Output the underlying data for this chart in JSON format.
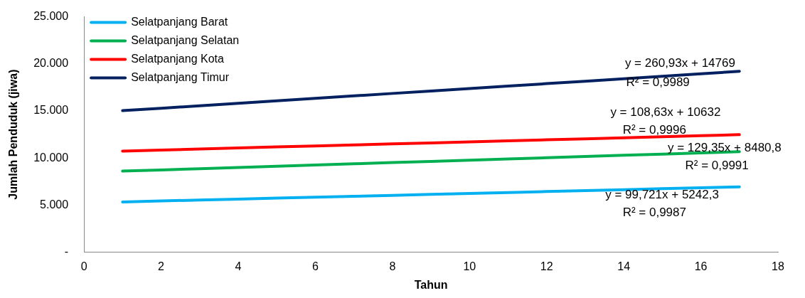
{
  "chart_data": {
    "type": "line",
    "xlabel": "Tahun",
    "ylabel": "Jumlah Penduduk (jiwa)",
    "x": [
      1,
      2,
      3,
      4,
      5,
      6,
      7,
      8,
      9,
      10,
      11,
      12,
      13,
      14,
      15,
      16,
      17
    ],
    "series": [
      {
        "name": "Selatpanjang Barat",
        "color": "#00b0f0",
        "values": [
          5340,
          5440,
          5540,
          5640,
          5740,
          5840,
          5940,
          6040,
          6140,
          6240,
          6340,
          6440,
          6540,
          6640,
          6740,
          6840,
          6940
        ]
      },
      {
        "name": "Selatpanjang Selatan",
        "color": "#00b050",
        "values": [
          8610,
          8740,
          8870,
          9000,
          9130,
          9260,
          9390,
          9520,
          9640,
          9770,
          9900,
          10030,
          10160,
          10290,
          10420,
          10550,
          10680
        ]
      },
      {
        "name": "Selatpanjang Kota",
        "color": "#ff0000",
        "values": [
          10740,
          10850,
          10960,
          11070,
          11180,
          11280,
          11390,
          11500,
          11610,
          11720,
          11830,
          11940,
          12040,
          12150,
          12260,
          12370,
          12480
        ]
      },
      {
        "name": "Selatpanjang Timur",
        "color": "#002060",
        "values": [
          15030,
          15290,
          15550,
          15810,
          16070,
          16340,
          16600,
          16860,
          17120,
          17380,
          17640,
          17900,
          18160,
          18420,
          18680,
          18940,
          19210
        ]
      }
    ],
    "xlim": [
      0,
      18
    ],
    "xticks": [
      0,
      2,
      4,
      6,
      8,
      10,
      12,
      14,
      16,
      18
    ],
    "ylim": [
      0,
      25000
    ],
    "yticks": [
      {
        "value": 0,
        "label": "-"
      },
      {
        "value": 5000,
        "label": "5.000"
      },
      {
        "value": 10000,
        "label": "10.000"
      },
      {
        "value": 15000,
        "label": "15.000"
      },
      {
        "value": 20000,
        "label": "20.000"
      },
      {
        "value": 25000,
        "label": "25.000"
      }
    ],
    "annotations": [
      "y = 260,93x + 14769",
      "R² = 0,9989",
      "y = 108,63x + 10632",
      "R² = 0,9996",
      "y = 129,35x + 8480,8",
      "R² = 0,9991",
      "y = 99,721x + 5242,3",
      "R² = 0,9987"
    ],
    "legend": "top left",
    "grid": false,
    "marker": "none",
    "line_style": "solid"
  }
}
